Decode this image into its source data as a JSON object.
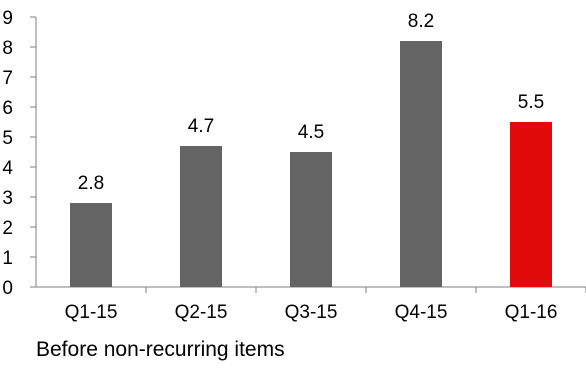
{
  "chart_data": {
    "type": "bar",
    "categories": [
      "Q1-15",
      "Q2-15",
      "Q3-15",
      "Q4-15",
      "Q1-16"
    ],
    "values": [
      2.8,
      4.7,
      4.5,
      8.2,
      5.5
    ],
    "data_labels": [
      "2.8",
      "4.7",
      "4.5",
      "8.2",
      "5.5"
    ],
    "bar_colors": [
      "#646464",
      "#646464",
      "#646464",
      "#646464",
      "#e00b0b"
    ],
    "ylim": [
      0,
      9
    ],
    "yticks": [
      0,
      1,
      2,
      3,
      4,
      5,
      6,
      7,
      8,
      9
    ],
    "grid": false,
    "title": "",
    "xlabel": "",
    "ylabel": ""
  },
  "caption": "Before non-recurring items"
}
